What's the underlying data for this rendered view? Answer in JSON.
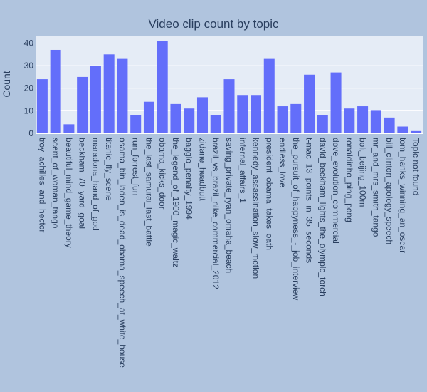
{
  "chart_data": {
    "type": "bar",
    "title": "Video clip count by topic",
    "xlabel": "",
    "ylabel": "Count",
    "ylim": [
      0,
      43
    ],
    "yticks": [
      0,
      10,
      20,
      30,
      40
    ],
    "grid": true,
    "legend": "none",
    "colors": {
      "paper": "#b0c4de",
      "plot": "#e5ecf6",
      "bar": "#636efa",
      "grid": "#ffffff",
      "text": "#2a3f5f"
    },
    "categories": [
      "troy_achilles_and_hector",
      "scent_of_woman_tango",
      "beautiful_mind_game_theory",
      "beckham_70_yard_goal",
      "maradona_hand_of_god",
      "titanic_fly_scene",
      "osama_bin_laden_is_dead_obama_speech_at_white_house",
      "run_forrest_fun",
      "the_last_samurai_last_battle",
      "obama_kicks_door",
      "the_legend_of_1900_magic_waltz",
      "baggio_penalty_1994",
      "zidane_headbutt",
      "brazil_vs_brazil_nike_commercial_2012",
      "saving_private_ryan_omaha_beach",
      "infernal_affairs_1",
      "kennedy_assassination_slow_motion",
      "president_obama_takes_oath",
      "endless_love",
      "the_pursuit_of_happyness_-_job_interview",
      "t-mac_13_points_in_35_seconds",
      "david_beckham_lights_the_olympic_torch",
      "dove_evolution_commercial",
      "ronaldinho_ping_pong",
      "bolt_beijing_100m",
      "mr_and_mrs_smith_tango",
      "bill_clinton_apology_speech",
      "tom_hanks_winning_an_oscar",
      "Topic not found"
    ],
    "values": [
      24,
      37,
      4,
      25,
      30,
      35,
      33,
      8,
      14,
      41,
      13,
      11,
      16,
      8,
      24,
      17,
      17,
      33,
      12,
      13,
      26,
      8,
      27,
      11,
      12,
      10,
      7,
      3,
      1
    ]
  }
}
